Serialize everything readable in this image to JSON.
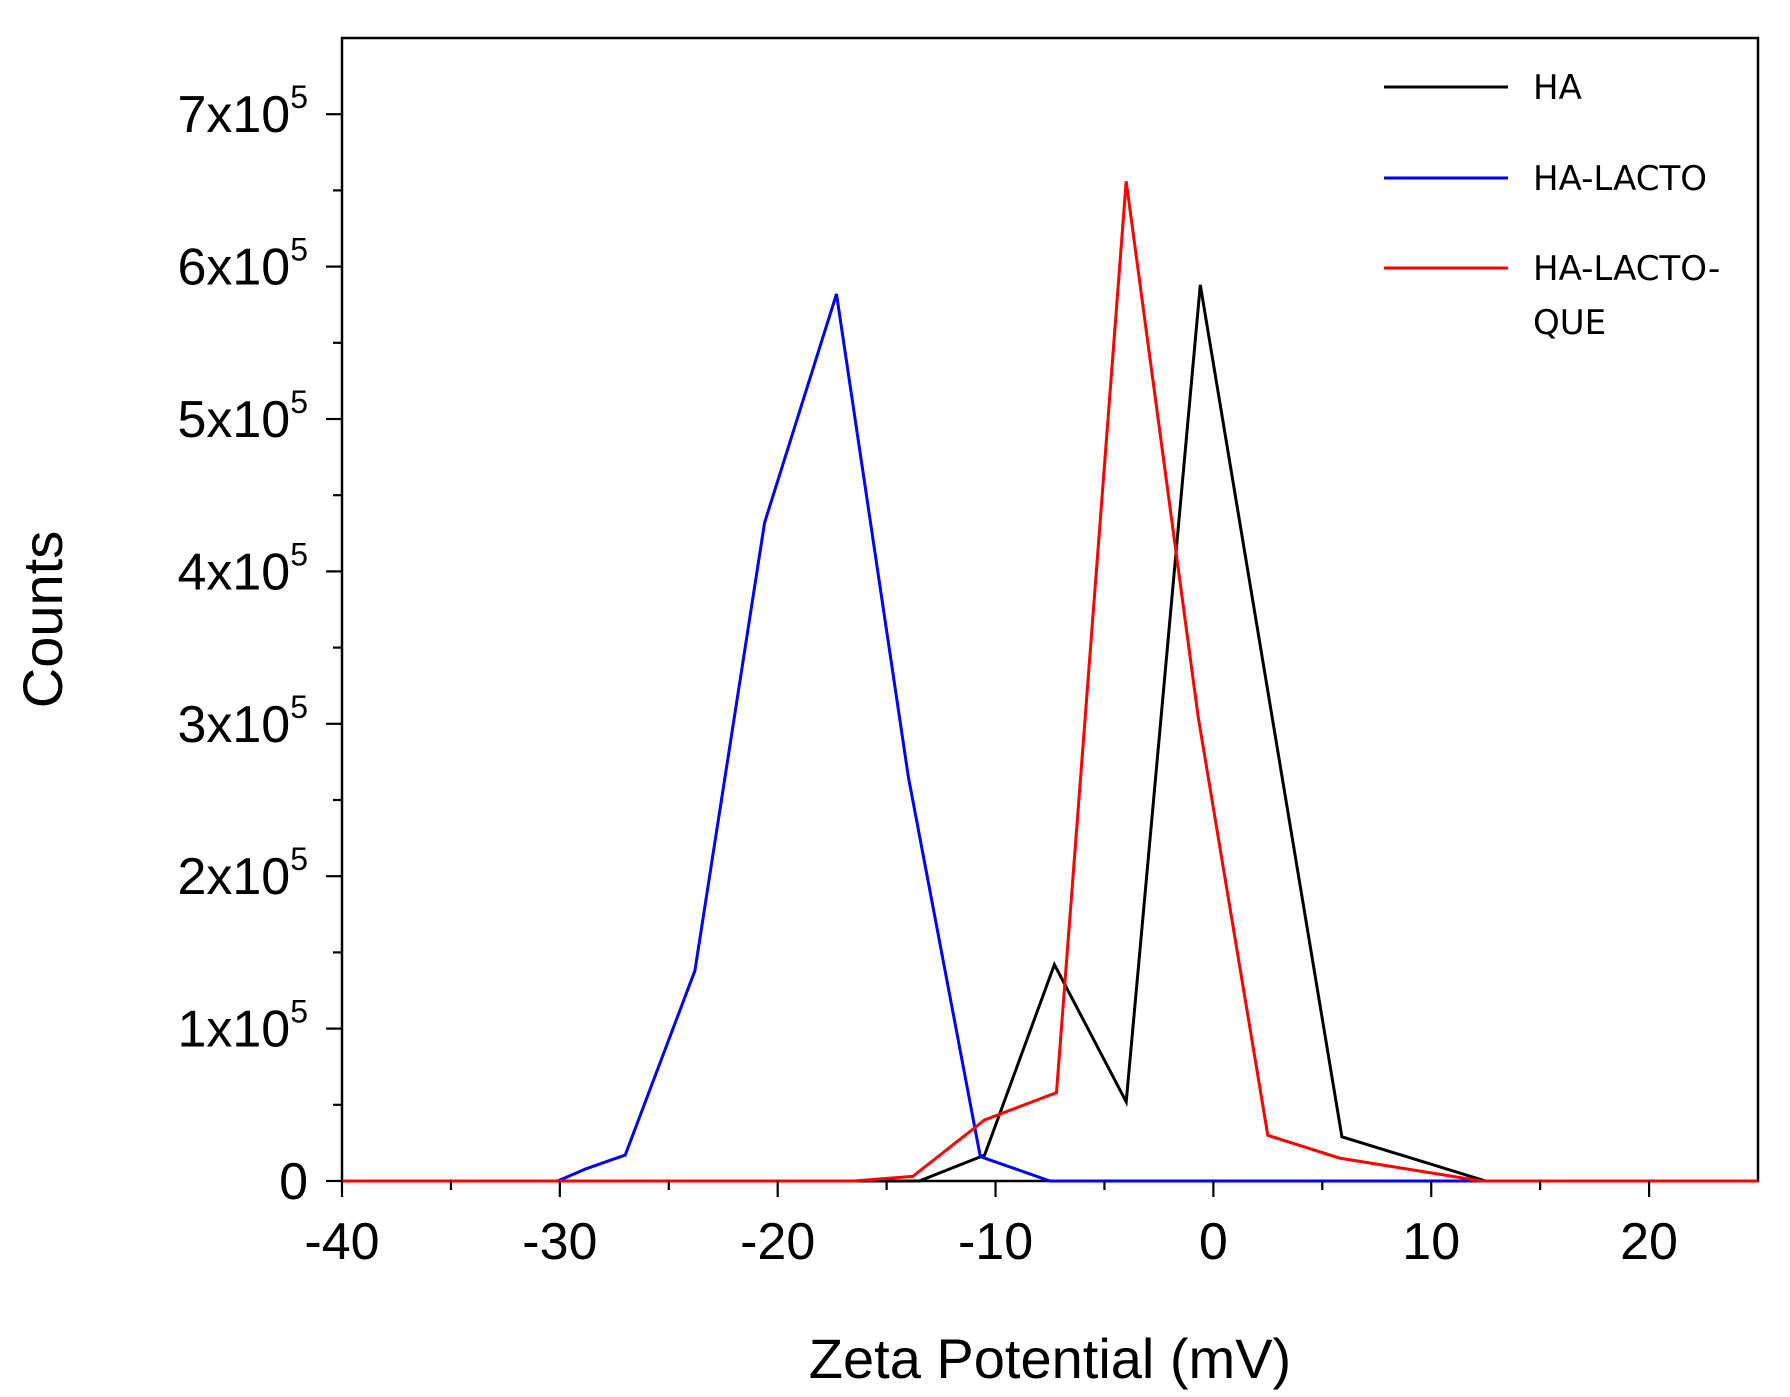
{
  "chart_data": {
    "type": "line",
    "title": "",
    "xlabel": "Zeta Potential (mV)",
    "ylabel": "Counts",
    "xlim": [
      -40,
      25
    ],
    "ylim": [
      0,
      750000
    ],
    "x_ticks": [
      -40,
      -30,
      -20,
      -10,
      0,
      10,
      20
    ],
    "x_tick_labels": [
      "-40",
      "-30",
      "-20",
      "-10",
      "0",
      "10",
      "20"
    ],
    "y_ticks": [
      0,
      100000,
      200000,
      300000,
      400000,
      500000,
      600000,
      700000
    ],
    "y_tick_labels": [
      {
        "mantissa": "0",
        "exp": ""
      },
      {
        "mantissa": "1x10",
        "exp": "5"
      },
      {
        "mantissa": "2x10",
        "exp": "5"
      },
      {
        "mantissa": "3x10",
        "exp": "5"
      },
      {
        "mantissa": "4x10",
        "exp": "5"
      },
      {
        "mantissa": "5x10",
        "exp": "5"
      },
      {
        "mantissa": "6x10",
        "exp": "5"
      },
      {
        "mantissa": "7x10",
        "exp": "5"
      }
    ],
    "grid": false,
    "legend_position": "top-right",
    "series": [
      {
        "name": "HA",
        "legend_lines": [
          "HA"
        ],
        "color": "#000000",
        "x": [
          -40,
          -13.5,
          -10.5,
          -7.3,
          -4.0,
          -0.6,
          5.9,
          12.5,
          25
        ],
        "y": [
          0,
          0,
          17000,
          142000,
          52000,
          588000,
          29000,
          0,
          0
        ]
      },
      {
        "name": "HA-LACTO",
        "legend_lines": [
          "HA-LACTO"
        ],
        "color": "#0000ff",
        "x": [
          -40,
          -30.1,
          -28.8,
          -27.0,
          -23.8,
          -20.6,
          -17.3,
          -14.0,
          -10.7,
          -7.5,
          25
        ],
        "y": [
          0,
          0,
          8000,
          17000,
          138000,
          432000,
          582000,
          265000,
          16000,
          0,
          0
        ]
      },
      {
        "name": "HA-LACTO-QUE",
        "legend_lines": [
          "HA-LACTO-",
          "QUE"
        ],
        "color": "#ff0000",
        "x": [
          -40,
          -16.5,
          -13.8,
          -10.5,
          -7.2,
          -4.0,
          -0.7,
          2.5,
          5.8,
          12.3,
          25
        ],
        "y": [
          0,
          0,
          3000,
          40000,
          58000,
          656000,
          305000,
          30000,
          15000,
          0,
          0
        ]
      }
    ]
  }
}
